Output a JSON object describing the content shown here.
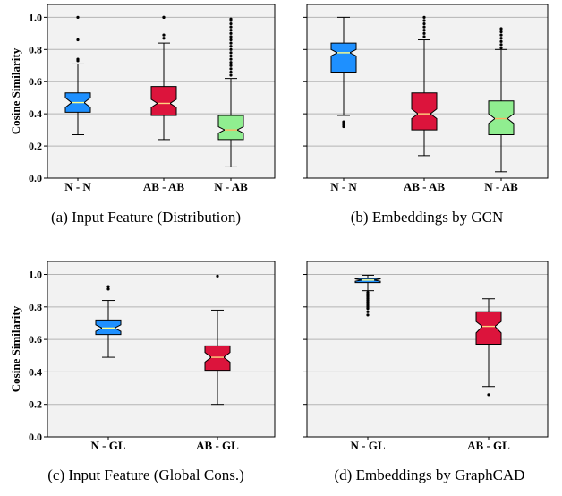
{
  "chart_data": [
    {
      "type": "box",
      "caption": "(a)  Input Feature (Distribution)",
      "ylabel": "Cosine Similarity",
      "ylim": [
        0.0,
        1.08
      ],
      "yticks": [
        "0.0",
        "0.2",
        "0.4",
        "0.6",
        "0.8",
        "1.0"
      ],
      "show_ytick_labels": true,
      "grid": true,
      "categories": [
        "N - N",
        "AB - AB",
        "N - AB"
      ],
      "boxes": [
        {
          "color": "#1e90ff",
          "whisker_low": 0.27,
          "q1": 0.41,
          "median": 0.47,
          "q3": 0.53,
          "whisker_high": 0.71,
          "notch_low": 0.44,
          "notch_high": 0.5,
          "outliers": [
            0.73,
            0.74,
            0.86,
            1.0
          ]
        },
        {
          "color": "#dc143c",
          "whisker_low": 0.24,
          "q1": 0.39,
          "median": 0.465,
          "q3": 0.57,
          "whisker_high": 0.84,
          "notch_low": 0.44,
          "notch_high": 0.49,
          "outliers": [
            0.87,
            0.89,
            1.0,
            1.0
          ]
        },
        {
          "color": "#90ee90",
          "whisker_low": 0.07,
          "q1": 0.24,
          "median": 0.3,
          "q3": 0.39,
          "whisker_high": 0.62,
          "notch_low": 0.28,
          "notch_high": 0.32,
          "outliers": [
            0.64,
            0.66,
            0.68,
            0.7,
            0.72,
            0.74,
            0.76,
            0.78,
            0.8,
            0.82,
            0.84,
            0.86,
            0.88,
            0.9,
            0.92,
            0.94,
            0.96,
            0.98,
            0.99
          ]
        }
      ]
    },
    {
      "type": "box",
      "caption": "(b)  Embeddings by GCN",
      "ylim": [
        0.0,
        1.08
      ],
      "yticks": [
        "0.0",
        "0.2",
        "0.4",
        "0.6",
        "0.8",
        "1.0"
      ],
      "show_ytick_labels": false,
      "grid": true,
      "categories": [
        "N - N",
        "AB - AB",
        "N - AB"
      ],
      "boxes": [
        {
          "color": "#1e90ff",
          "whisker_low": 0.39,
          "q1": 0.66,
          "median": 0.78,
          "q3": 0.84,
          "whisker_high": 1.0,
          "notch_low": 0.76,
          "notch_high": 0.8,
          "outliers": [
            0.32,
            0.33,
            0.34,
            0.35
          ]
        },
        {
          "color": "#dc143c",
          "whisker_low": 0.14,
          "q1": 0.3,
          "median": 0.4,
          "q3": 0.53,
          "whisker_high": 0.86,
          "notch_low": 0.37,
          "notch_high": 0.43,
          "outliers": [
            0.88,
            0.9,
            0.92,
            0.94,
            0.96,
            0.98,
            1.0
          ]
        },
        {
          "color": "#90ee90",
          "whisker_low": 0.04,
          "q1": 0.27,
          "median": 0.37,
          "q3": 0.48,
          "whisker_high": 0.8,
          "notch_low": 0.34,
          "notch_high": 0.4,
          "outliers": [
            0.81,
            0.83,
            0.85,
            0.87,
            0.89,
            0.91,
            0.93
          ]
        }
      ]
    },
    {
      "type": "box",
      "caption": "(c)  Input Feature (Global Cons.)",
      "ylabel": "Cosine Similarity",
      "ylim": [
        0.0,
        1.08
      ],
      "yticks": [
        "0.0",
        "0.2",
        "0.4",
        "0.6",
        "0.8",
        "1.0"
      ],
      "show_ytick_labels": true,
      "grid": true,
      "categories": [
        "N - GL",
        "AB - GL"
      ],
      "boxes": [
        {
          "color": "#1e90ff",
          "whisker_low": 0.49,
          "q1": 0.63,
          "median": 0.67,
          "q3": 0.72,
          "whisker_high": 0.84,
          "notch_low": 0.65,
          "notch_high": 0.69,
          "outliers": [
            0.91,
            0.925
          ]
        },
        {
          "color": "#dc143c",
          "whisker_low": 0.2,
          "q1": 0.41,
          "median": 0.49,
          "q3": 0.56,
          "whisker_high": 0.78,
          "notch_low": 0.46,
          "notch_high": 0.52,
          "outliers": [
            0.99
          ]
        }
      ]
    },
    {
      "type": "box",
      "caption": "(d)  Embeddings by GraphCAD",
      "ylim": [
        0.0,
        1.08
      ],
      "yticks": [
        "0.0",
        "0.2",
        "0.4",
        "0.6",
        "0.8",
        "1.0"
      ],
      "show_ytick_labels": false,
      "grid": true,
      "categories": [
        "N - GL",
        "AB - GL"
      ],
      "boxes": [
        {
          "color": "#1e90ff",
          "whisker_low": 0.9,
          "q1": 0.95,
          "median": 0.965,
          "q3": 0.975,
          "whisker_high": 0.995,
          "notch_low": 0.958,
          "notch_high": 0.972,
          "outliers": [
            0.75,
            0.77,
            0.79,
            0.8,
            0.81,
            0.82,
            0.83,
            0.84,
            0.85,
            0.86,
            0.87,
            0.88,
            0.89
          ]
        },
        {
          "color": "#dc143c",
          "whisker_low": 0.31,
          "q1": 0.57,
          "median": 0.68,
          "q3": 0.77,
          "whisker_high": 0.85,
          "notch_low": 0.64,
          "notch_high": 0.71,
          "outliers": [
            0.26
          ]
        }
      ]
    }
  ]
}
